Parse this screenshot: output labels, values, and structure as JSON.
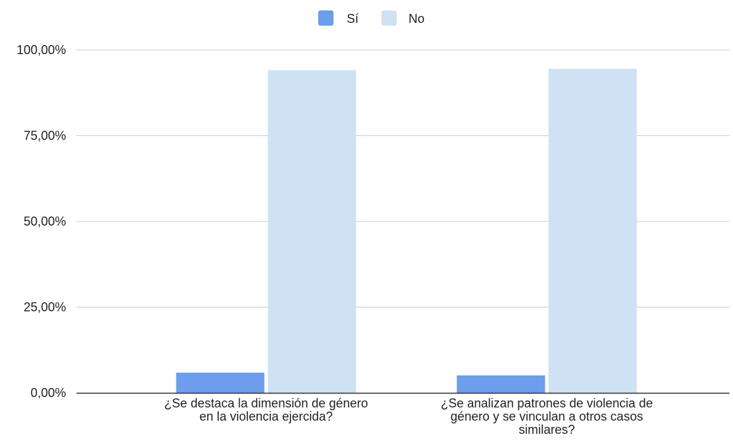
{
  "chart_data": {
    "type": "bar",
    "categories": [
      [
        "¿Se destaca la dimensión de género",
        "en la violencia ejercida?"
      ],
      [
        "¿Se analizan patrones de violencia de",
        "género y se vinculan a otros casos",
        "similares?"
      ]
    ],
    "series": [
      {
        "name": "Sí",
        "color": "#6d9eeb",
        "values": [
          0.059,
          0.051
        ]
      },
      {
        "name": "No",
        "color": "#cfe2f3",
        "values": [
          0.941,
          0.945
        ]
      }
    ],
    "ylim": [
      0,
      1
    ],
    "yticks": [
      0,
      0.25,
      0.5,
      0.75,
      1
    ],
    "ytick_labels": [
      "0,00%",
      "25,00%",
      "50,00%",
      "75,00%",
      "100,00%"
    ],
    "grid": true,
    "legend_position": "top-center",
    "title": "",
    "xlabel": "",
    "ylabel": ""
  }
}
